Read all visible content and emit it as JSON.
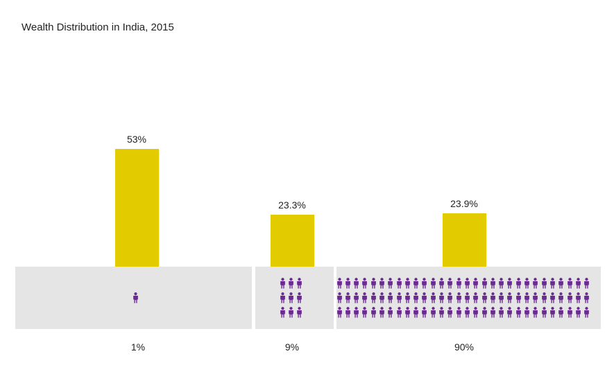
{
  "chart_data": {
    "type": "bar",
    "title": "Wealth Distribution in India, 2015",
    "categories": [
      "1%",
      "9%",
      "90%"
    ],
    "series": [
      {
        "values": [
          53,
          23.3,
          23.9
        ]
      }
    ],
    "value_labels": [
      "53%",
      "23.3%",
      "23.9%"
    ],
    "people_icons": [
      1,
      9,
      90
    ],
    "ylim": [
      0,
      60
    ],
    "grid": false,
    "legend": "none"
  },
  "colors": {
    "bar": "#e2cc00",
    "panel": "#e5e5e5",
    "person": "#6b2c91",
    "text": "#222222"
  },
  "icon": "person-icon"
}
